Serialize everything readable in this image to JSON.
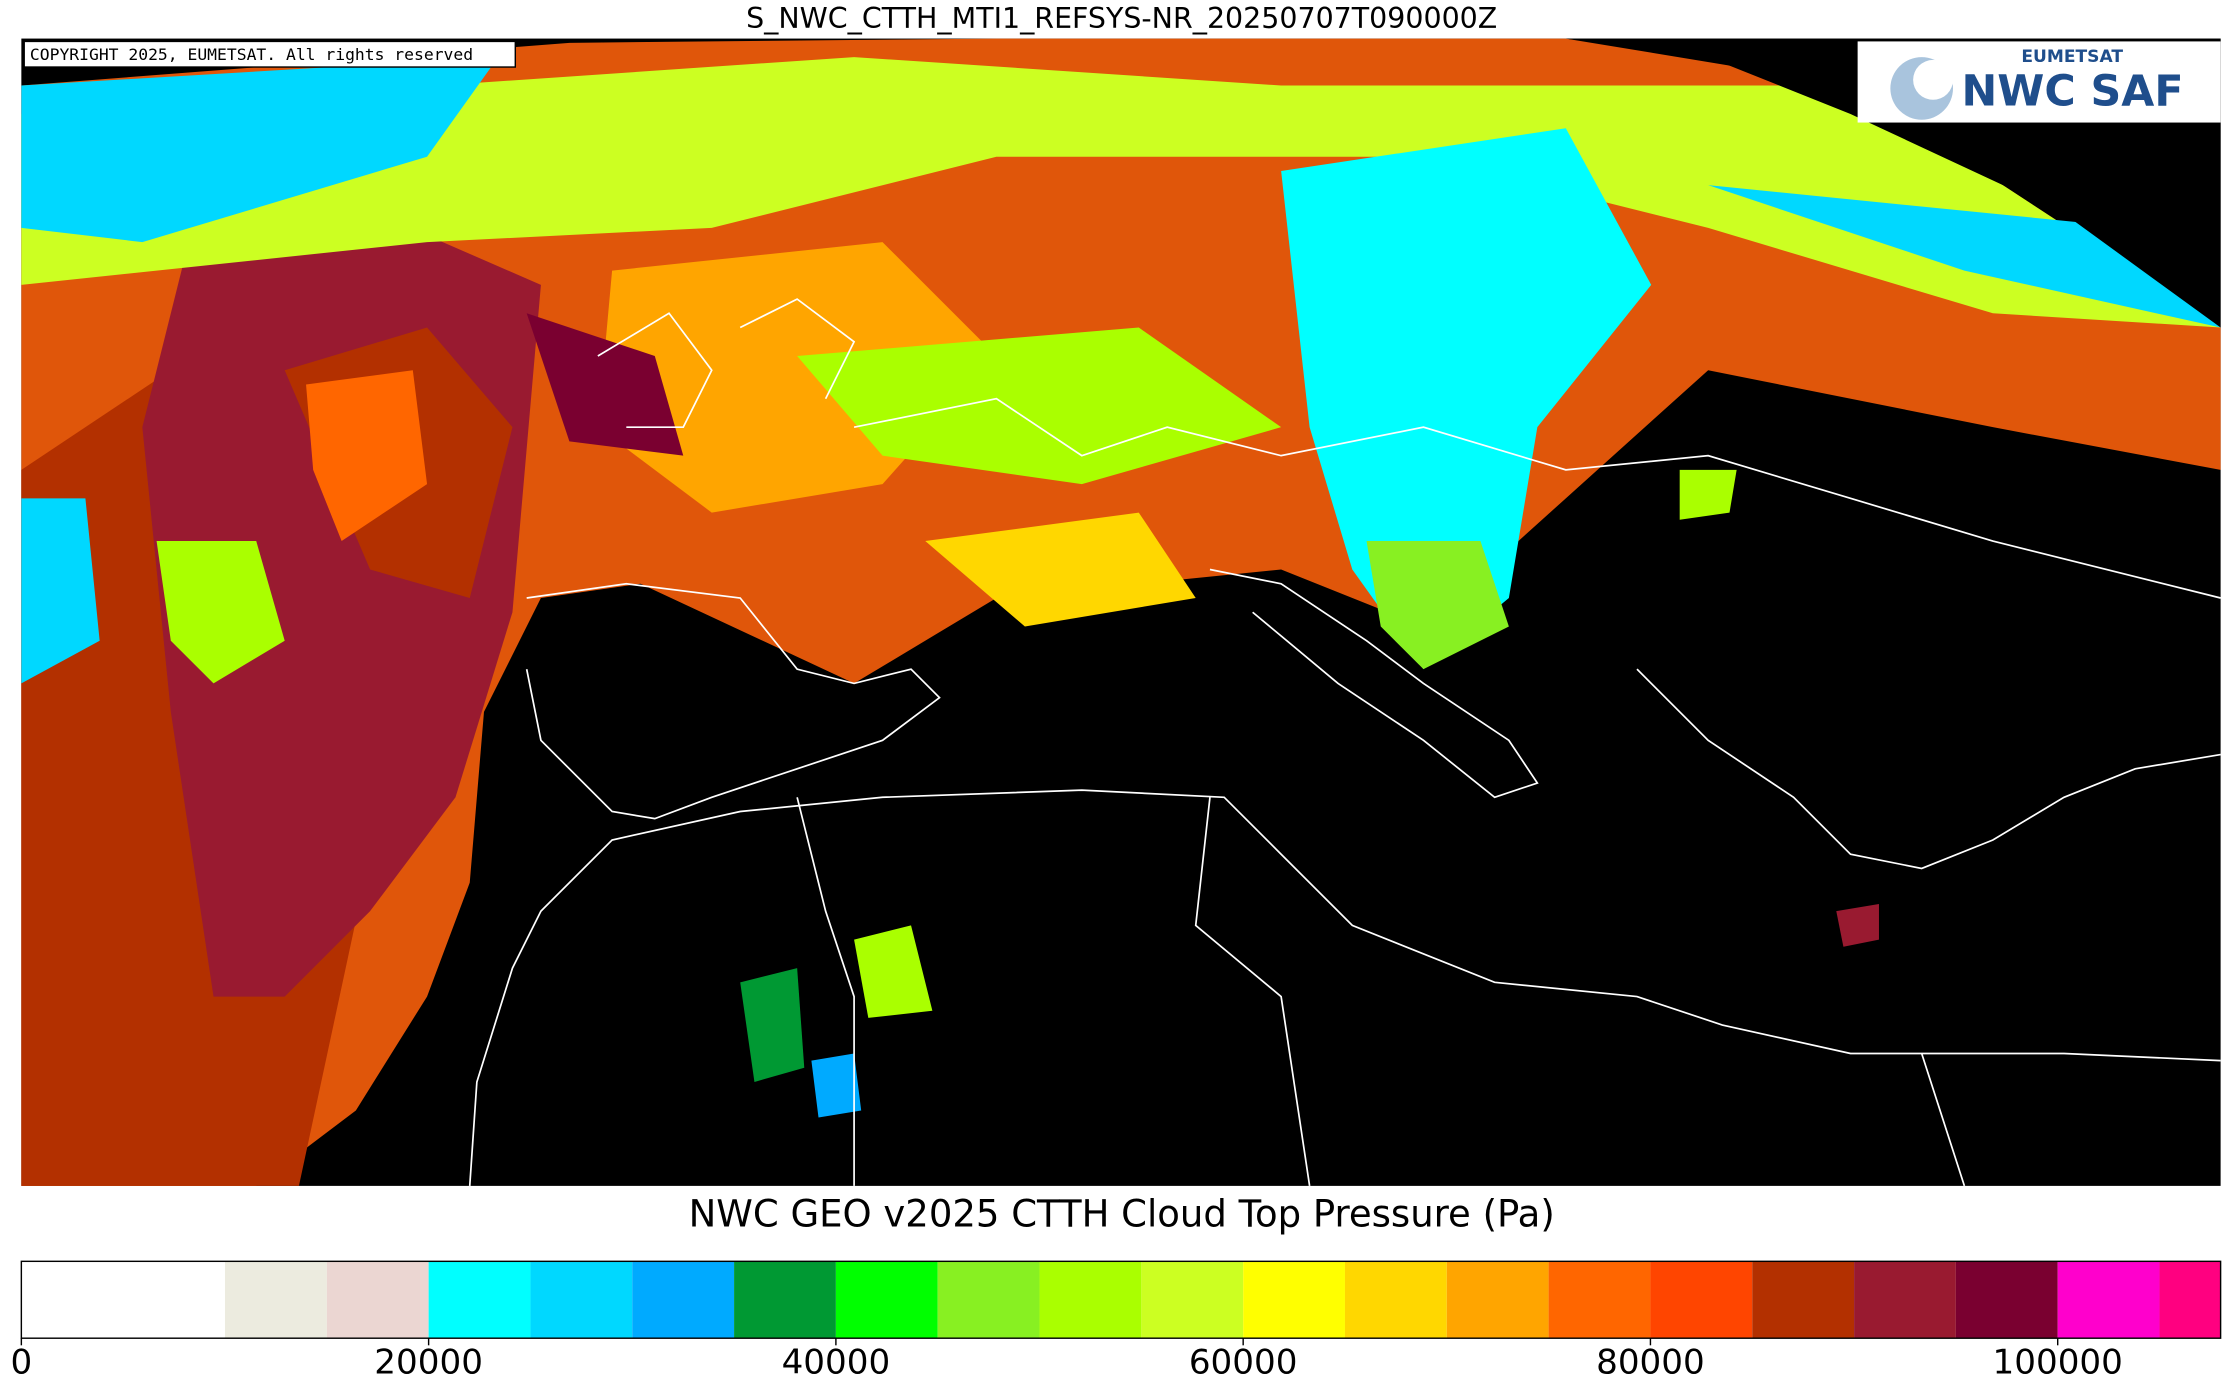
{
  "title": "S_NWC_CTTH_MTI1_REFSYS-NR_20250707T090000Z",
  "copyright": "COPYRIGHT 2025, EUMETSAT. All rights reserved",
  "logo": {
    "top": "EUMETSAT",
    "main": "NWC SAF"
  },
  "colorbar": {
    "title": "NWC GEO v2025 CTTH Cloud Top Pressure (Pa)",
    "bounds": [
      0,
      10000,
      15000,
      20000,
      25000,
      30000,
      35000,
      40000,
      45000,
      50000,
      55000,
      60000,
      65000,
      70000,
      75000,
      80000,
      85000,
      90000,
      95000,
      100000,
      105000,
      108000
    ],
    "colors": [
      "#ffffff",
      "#ecebdf",
      "#ebd6d2",
      "#00ffff",
      "#00d8ff",
      "#00aaff",
      "#009933",
      "#00ff00",
      "#88f022",
      "#aaff00",
      "#ccff22",
      "#ffff00",
      "#ffd700",
      "#ffa500",
      "#ff6600",
      "#ff4500",
      "#b33000",
      "#991a30",
      "#7a0030",
      "#ff00cc",
      "#ff0080"
    ],
    "ticks": [
      0,
      20000,
      40000,
      60000,
      80000,
      100000
    ]
  }
}
